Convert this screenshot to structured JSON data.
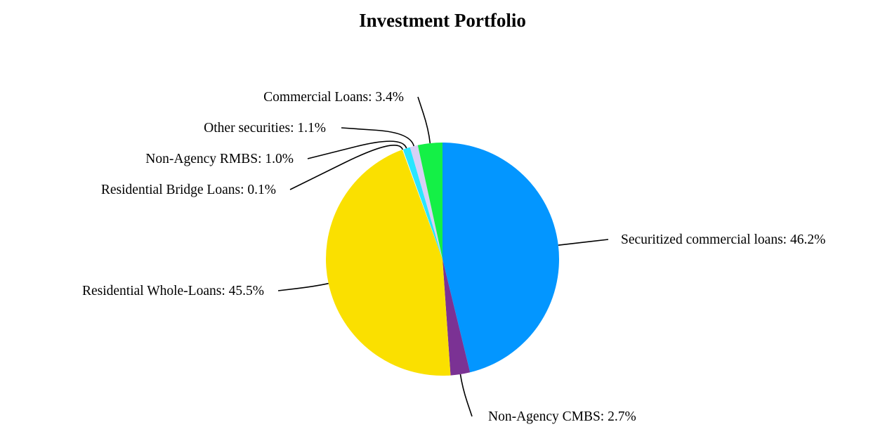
{
  "chart_data": {
    "type": "pie",
    "title": "Investment Portfolio",
    "slices": [
      {
        "label": "Securitized commercial loans",
        "value": 46.2,
        "display": "46.2%",
        "color": "#0396FF"
      },
      {
        "label": "Non-Agency CMBS",
        "value": 2.7,
        "display": "2.7%",
        "color": "#7B3294"
      },
      {
        "label": "Residential Whole-Loans",
        "value": 45.5,
        "display": "45.5%",
        "color": "#FAE000"
      },
      {
        "label": "Residential Bridge Loans",
        "value": 0.1,
        "display": "0.1%",
        "color": "#F5F5F5"
      },
      {
        "label": "Non-Agency RMBS",
        "value": 1.0,
        "display": "1.0%",
        "color": "#29E6FF"
      },
      {
        "label": "Other securities",
        "value": 1.1,
        "display": "1.1%",
        "color": "#D8D0F5"
      },
      {
        "label": "Commercial Loans",
        "value": 3.4,
        "display": "3.4%",
        "color": "#14F046"
      }
    ],
    "start_angle": "12 o'clock",
    "direction": "clockwise",
    "legend": "none"
  }
}
